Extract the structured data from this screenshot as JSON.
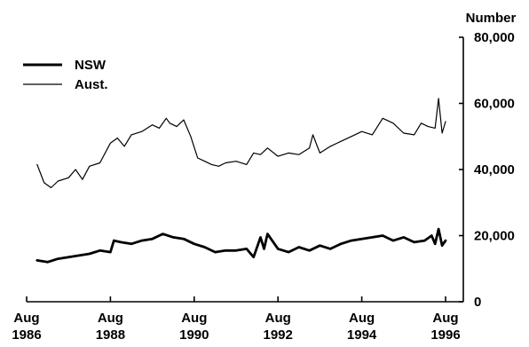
{
  "chart_data": {
    "type": "line",
    "title": "",
    "xlabel": "",
    "ylabel": "Number",
    "x_ticks": [
      {
        "date": "1986-08",
        "line1": "Aug",
        "line2": "1986"
      },
      {
        "date": "1988-08",
        "line1": "Aug",
        "line2": "1988"
      },
      {
        "date": "1990-08",
        "line1": "Aug",
        "line2": "1990"
      },
      {
        "date": "1992-08",
        "line1": "Aug",
        "line2": "1992"
      },
      {
        "date": "1994-08",
        "line1": "Aug",
        "line2": "1994"
      },
      {
        "date": "1996-08",
        "line1": "Aug",
        "line2": "1996"
      }
    ],
    "y_ticks": [
      0,
      20000,
      40000,
      60000,
      80000
    ],
    "y_tick_labels": [
      "0",
      "20,000",
      "40,000",
      "60,000",
      "80,000"
    ],
    "ylim": [
      0,
      80000
    ],
    "xlim": [
      "1986-08",
      "1996-08"
    ],
    "grid": false,
    "y_axis_position": "right",
    "legend_position": "top-left",
    "series": [
      {
        "name": "NSW",
        "color": "#000000",
        "style": "thick",
        "x": [
          "1986-11",
          "1987-02",
          "1987-05",
          "1987-08",
          "1987-11",
          "1988-02",
          "1988-05",
          "1988-08",
          "1988-09",
          "1988-11",
          "1989-02",
          "1989-05",
          "1989-08",
          "1989-11",
          "1990-02",
          "1990-05",
          "1990-08",
          "1990-11",
          "1991-02",
          "1991-05",
          "1991-08",
          "1991-11",
          "1992-01",
          "1992-03",
          "1992-04",
          "1992-05",
          "1992-08",
          "1992-11",
          "1993-02",
          "1993-05",
          "1993-08",
          "1993-11",
          "1994-02",
          "1994-05",
          "1994-08",
          "1994-11",
          "1995-02",
          "1995-05",
          "1995-08",
          "1995-11",
          "1996-02",
          "1996-04",
          "1996-05",
          "1996-06",
          "1996-07",
          "1996-08"
        ],
        "y": [
          12500,
          12000,
          13000,
          13500,
          14000,
          14500,
          15500,
          15000,
          18500,
          18000,
          17500,
          18500,
          19000,
          20500,
          19500,
          19000,
          17500,
          16500,
          15000,
          15500,
          15500,
          16000,
          13500,
          19500,
          16000,
          20500,
          16000,
          15000,
          16500,
          15500,
          17000,
          16000,
          17500,
          18500,
          19000,
          19500,
          20000,
          18500,
          19500,
          18000,
          18500,
          20000,
          17500,
          22000,
          17000,
          18500
        ]
      },
      {
        "name": "Aust.",
        "color": "#000000",
        "style": "thin",
        "x": [
          "1986-11",
          "1987-01",
          "1987-03",
          "1987-05",
          "1987-08",
          "1987-10",
          "1987-12",
          "1988-02",
          "1988-05",
          "1988-08",
          "1988-10",
          "1988-12",
          "1989-02",
          "1989-05",
          "1989-08",
          "1989-10",
          "1989-12",
          "1990-01",
          "1990-03",
          "1990-05",
          "1990-07",
          "1990-09",
          "1990-11",
          "1991-01",
          "1991-03",
          "1991-05",
          "1991-08",
          "1991-11",
          "1992-01",
          "1992-03",
          "1992-05",
          "1992-08",
          "1992-11",
          "1993-02",
          "1993-05",
          "1993-06",
          "1993-08",
          "1993-11",
          "1994-02",
          "1994-05",
          "1994-08",
          "1994-11",
          "1995-02",
          "1995-05",
          "1995-08",
          "1995-11",
          "1996-01",
          "1996-03",
          "1996-05",
          "1996-06",
          "1996-07",
          "1996-08"
        ],
        "y": [
          41500,
          36000,
          34500,
          36500,
          37500,
          40000,
          37000,
          41000,
          42000,
          48000,
          49500,
          47000,
          50500,
          51500,
          53500,
          52500,
          55500,
          54000,
          53000,
          55000,
          50000,
          43500,
          42500,
          41500,
          41000,
          42000,
          42500,
          41500,
          45000,
          44500,
          46500,
          44000,
          45000,
          44500,
          46500,
          50500,
          45000,
          47000,
          48500,
          50000,
          51500,
          50500,
          55500,
          54000,
          51000,
          50500,
          54000,
          53000,
          52500,
          61500,
          51000,
          54500
        ]
      }
    ]
  }
}
